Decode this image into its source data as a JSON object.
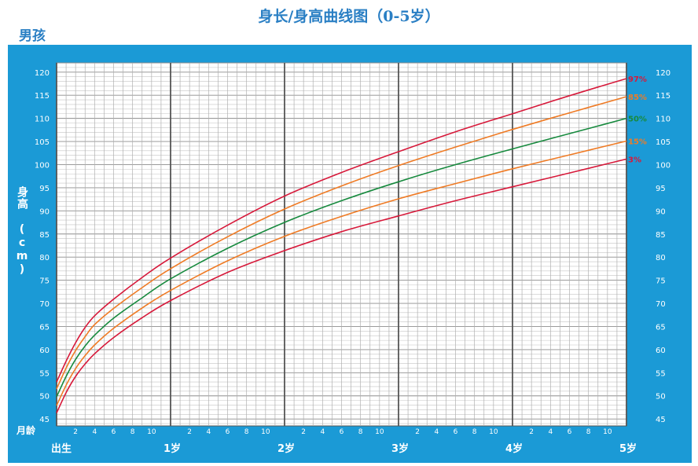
{
  "title": "身长/身高曲线图（0-5岁）",
  "subtitle": "男孩",
  "chart_data": {
    "type": "line",
    "ylabel": "身高 (cm)",
    "xlabel": "月龄",
    "ylim": [
      45,
      120
    ],
    "yticks": [
      45,
      50,
      55,
      60,
      65,
      70,
      75,
      80,
      85,
      90,
      95,
      100,
      105,
      110,
      115,
      120
    ],
    "xlim_months": [
      0,
      60
    ],
    "x_minor_ticks": [
      "2",
      "4",
      "6",
      "8",
      "10"
    ],
    "x_major_labels": [
      "出生",
      "1岁",
      "2岁",
      "3岁",
      "4岁",
      "5岁"
    ],
    "grid": true,
    "series": [
      {
        "name": "97%",
        "color": "#d7193a",
        "x": [
          0,
          1,
          2,
          3,
          4,
          6,
          9,
          12,
          18,
          24,
          30,
          36,
          42,
          48,
          54,
          60
        ],
        "y": [
          53.0,
          57.5,
          61.5,
          64.8,
          67.3,
          70.9,
          75.6,
          79.8,
          86.9,
          93.2,
          98.3,
          102.8,
          107.1,
          111.0,
          114.9,
          118.6
        ]
      },
      {
        "name": "85%",
        "color": "#ef7b25",
        "x": [
          0,
          1,
          2,
          3,
          4,
          6,
          9,
          12,
          18,
          24,
          30,
          36,
          42,
          48,
          54,
          60
        ],
        "y": [
          51.5,
          56.0,
          59.8,
          62.8,
          65.4,
          68.9,
          73.4,
          77.5,
          84.4,
          90.4,
          95.4,
          99.8,
          103.8,
          107.6,
          111.2,
          114.7
        ]
      },
      {
        "name": "50%",
        "color": "#178a3e",
        "x": [
          0,
          1,
          2,
          3,
          4,
          6,
          9,
          12,
          18,
          24,
          30,
          36,
          42,
          48,
          54,
          60
        ],
        "y": [
          49.8,
          54.2,
          57.9,
          60.8,
          63.1,
          66.8,
          71.2,
          75.3,
          81.9,
          87.5,
          92.2,
          96.3,
          100.0,
          103.4,
          106.7,
          110.0
        ]
      },
      {
        "name": "15%",
        "color": "#ef7b25",
        "x": [
          0,
          1,
          2,
          3,
          4,
          6,
          9,
          12,
          18,
          24,
          30,
          36,
          42,
          48,
          54,
          60
        ],
        "y": [
          47.9,
          52.3,
          55.9,
          58.7,
          61.0,
          64.6,
          69.0,
          72.8,
          79.2,
          84.5,
          88.8,
          92.6,
          95.9,
          99.1,
          102.1,
          105.1
        ]
      },
      {
        "name": "3%",
        "color": "#d7193a",
        "x": [
          0,
          1,
          2,
          3,
          4,
          6,
          9,
          12,
          18,
          24,
          30,
          36,
          42,
          48,
          54,
          60
        ],
        "y": [
          46.3,
          50.7,
          54.2,
          56.9,
          59.1,
          62.6,
          66.9,
          70.6,
          76.7,
          81.4,
          85.5,
          88.9,
          92.2,
          95.2,
          98.2,
          101.2
        ]
      }
    ]
  }
}
